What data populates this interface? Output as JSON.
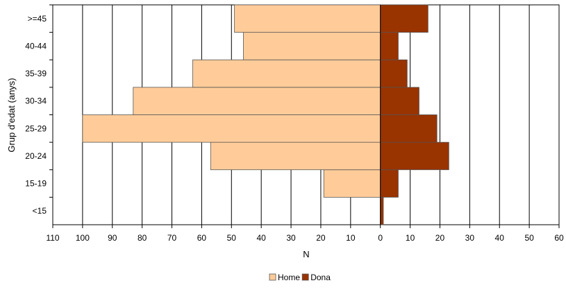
{
  "chart_data": {
    "type": "bar",
    "orientation": "horizontal-population-pyramid",
    "categories": [
      "<15",
      "15-19",
      "20-24",
      "25-29",
      "30-34",
      "35-39",
      "40-44",
      ">=45"
    ],
    "series": [
      {
        "name": "Home",
        "values": [
          0,
          19,
          57,
          100,
          83,
          63,
          46,
          49
        ],
        "color": "#FFCC99",
        "side": "left"
      },
      {
        "name": "Dona",
        "values": [
          1,
          6,
          23,
          19,
          13,
          9,
          6,
          16
        ],
        "color": "#993300",
        "side": "right"
      }
    ],
    "xlabel": "N",
    "ylabel": "Grup d'edat (anys)",
    "xticks": [
      "110",
      "100",
      "90",
      "80",
      "70",
      "60",
      "50",
      "40",
      "30",
      "20",
      "10",
      "0",
      "10",
      "20",
      "30",
      "40",
      "50",
      "60"
    ],
    "xlim": [
      -110,
      60
    ],
    "grid": true,
    "legend_position": "bottom-center"
  }
}
